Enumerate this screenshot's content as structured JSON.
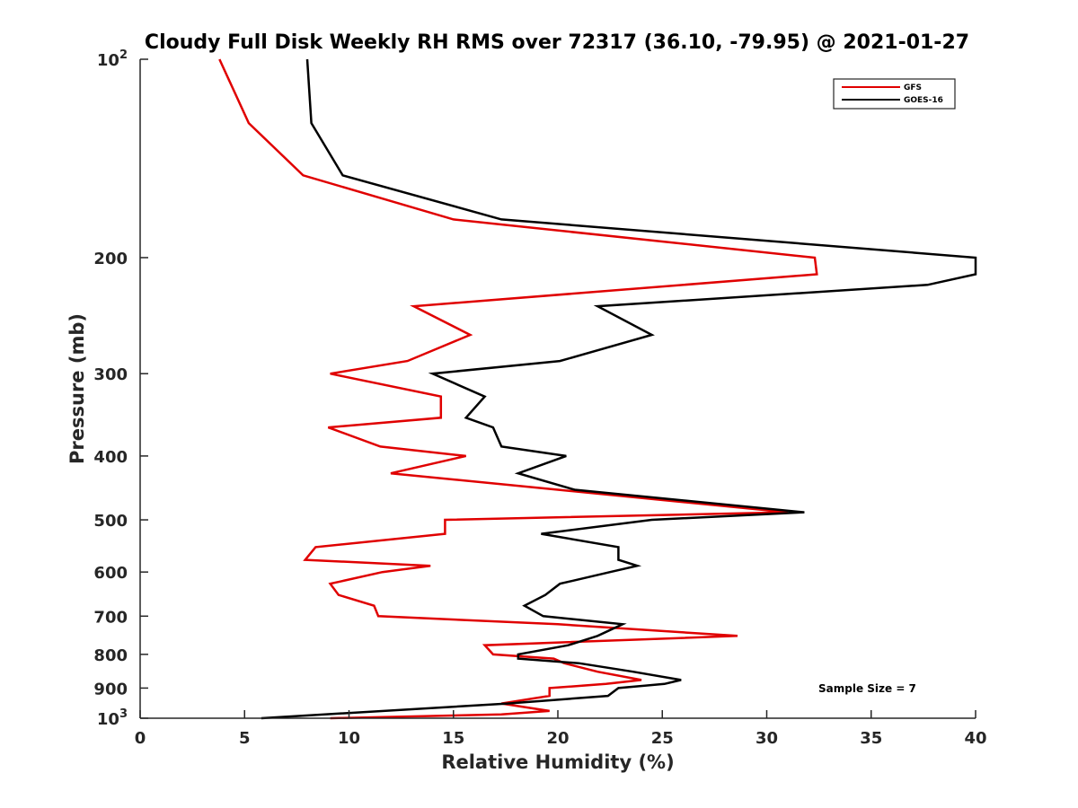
{
  "chart_data": {
    "type": "line",
    "title": "Cloudy Full Disk Weekly RH RMS over 72317 (36.10, -79.95) @ 2021-01-27",
    "xlabel": "Relative Humidity (%)",
    "ylabel": "Pressure (mb)",
    "xlim": [
      0,
      40
    ],
    "ylim": [
      100,
      1000
    ],
    "y_scale": "log",
    "y_reversed": true,
    "x_ticks": [
      0,
      5,
      10,
      15,
      20,
      25,
      30,
      35,
      40
    ],
    "x_tick_labels": [
      "0",
      "5",
      "10",
      "15",
      "20",
      "25",
      "30",
      "35",
      "40"
    ],
    "y_ticks": [
      100,
      200,
      300,
      400,
      500,
      600,
      700,
      800,
      900,
      1000
    ],
    "y_tick_labels": [
      {
        "base": "10",
        "sup": "2"
      },
      {
        "base": "200",
        "sup": ""
      },
      {
        "base": "300",
        "sup": ""
      },
      {
        "base": "400",
        "sup": ""
      },
      {
        "base": "500",
        "sup": ""
      },
      {
        "base": "600",
        "sup": ""
      },
      {
        "base": "700",
        "sup": ""
      },
      {
        "base": "800",
        "sup": ""
      },
      {
        "base": "900",
        "sup": ""
      },
      {
        "base": "10",
        "sup": "3"
      }
    ],
    "grid": false,
    "legend_position": "top-right",
    "annotation": "Sample Size = 7",
    "series": [
      {
        "name": "GFS",
        "color": "#e00000",
        "points": [
          [
            3.8,
            100
          ],
          [
            5.2,
            125
          ],
          [
            7.8,
            150
          ],
          [
            15.0,
            175
          ],
          [
            32.3,
            200
          ],
          [
            32.4,
            212
          ],
          [
            13.1,
            237
          ],
          [
            15.8,
            262
          ],
          [
            12.8,
            287
          ],
          [
            9.1,
            300
          ],
          [
            14.4,
            325
          ],
          [
            14.4,
            350
          ],
          [
            9.0,
            362
          ],
          [
            11.5,
            387
          ],
          [
            15.6,
            400
          ],
          [
            12.0,
            425
          ],
          [
            20.0,
            450
          ],
          [
            31.0,
            487
          ],
          [
            14.6,
            500
          ],
          [
            14.6,
            525
          ],
          [
            8.4,
            550
          ],
          [
            7.9,
            575
          ],
          [
            13.9,
            587
          ],
          [
            11.6,
            600
          ],
          [
            9.1,
            625
          ],
          [
            9.5,
            650
          ],
          [
            11.2,
            675
          ],
          [
            11.4,
            700
          ],
          [
            20.0,
            720
          ],
          [
            28.6,
            750
          ],
          [
            16.5,
            775
          ],
          [
            16.9,
            800
          ],
          [
            19.8,
            812
          ],
          [
            20.3,
            825
          ],
          [
            21.9,
            850
          ],
          [
            24.0,
            875
          ],
          [
            22.3,
            887
          ],
          [
            19.6,
            900
          ],
          [
            19.6,
            925
          ],
          [
            17.3,
            950
          ],
          [
            19.6,
            975
          ],
          [
            17.3,
            987
          ],
          [
            9.1,
            1000
          ]
        ]
      },
      {
        "name": "GOES-16",
        "color": "#000000",
        "points": [
          [
            8.0,
            100
          ],
          [
            8.2,
            125
          ],
          [
            9.7,
            150
          ],
          [
            17.3,
            175
          ],
          [
            40.0,
            200
          ],
          [
            40.0,
            212
          ],
          [
            37.7,
            220
          ],
          [
            21.9,
            237
          ],
          [
            24.5,
            262
          ],
          [
            20.1,
            287
          ],
          [
            14.0,
            300
          ],
          [
            16.5,
            325
          ],
          [
            15.6,
            350
          ],
          [
            16.9,
            362
          ],
          [
            17.3,
            387
          ],
          [
            20.4,
            400
          ],
          [
            18.1,
            425
          ],
          [
            20.8,
            450
          ],
          [
            31.8,
            487
          ],
          [
            24.5,
            500
          ],
          [
            19.2,
            525
          ],
          [
            22.9,
            550
          ],
          [
            22.9,
            575
          ],
          [
            23.8,
            587
          ],
          [
            22.5,
            600
          ],
          [
            20.1,
            625
          ],
          [
            19.4,
            650
          ],
          [
            18.4,
            675
          ],
          [
            19.3,
            700
          ],
          [
            23.1,
            720
          ],
          [
            21.9,
            750
          ],
          [
            20.5,
            775
          ],
          [
            18.1,
            800
          ],
          [
            18.1,
            812
          ],
          [
            21.0,
            825
          ],
          [
            23.6,
            850
          ],
          [
            25.9,
            875
          ],
          [
            25.1,
            887
          ],
          [
            22.9,
            900
          ],
          [
            22.4,
            925
          ],
          [
            17.6,
            950
          ],
          [
            5.8,
            1000
          ]
        ]
      }
    ]
  },
  "legend": {
    "items": [
      {
        "label": "GFS",
        "color": "#e00000"
      },
      {
        "label": "GOES-16",
        "color": "#000000"
      }
    ]
  }
}
